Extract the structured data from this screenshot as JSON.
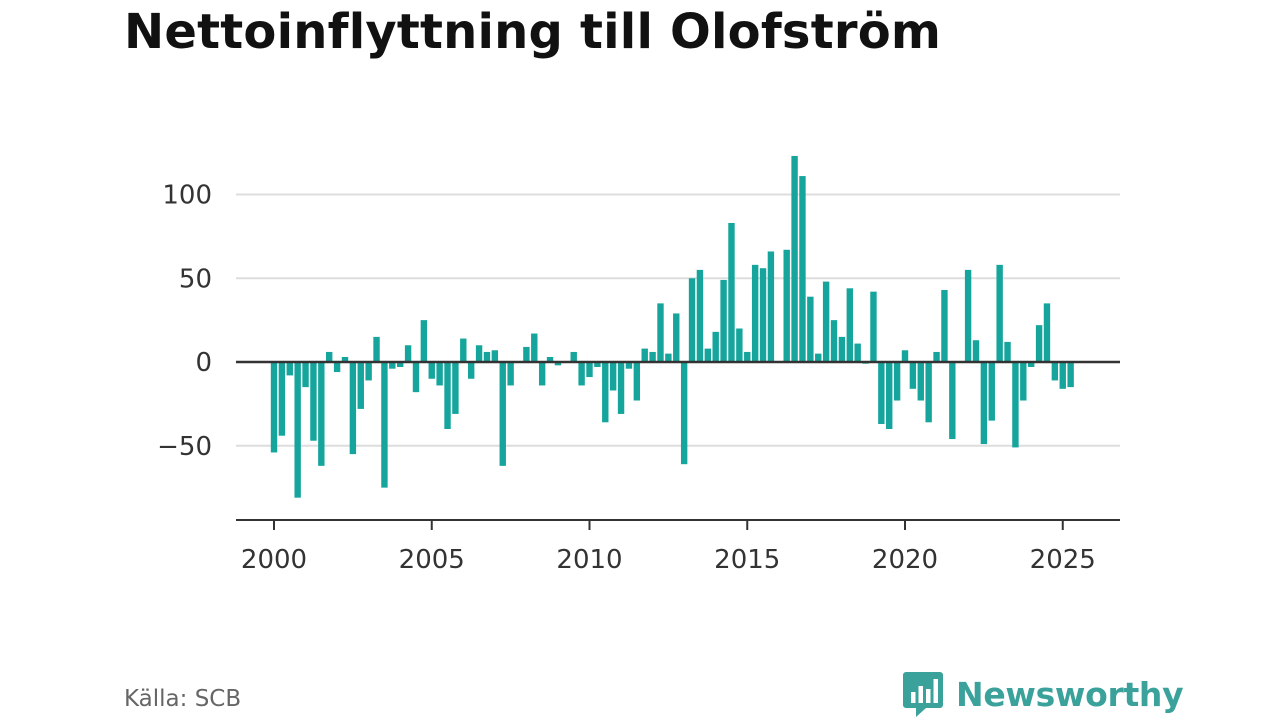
{
  "header": {
    "title": "Nettoinflyttning till Olofström"
  },
  "footer": {
    "source": "Källa: SCB",
    "brand": "Newsworthy"
  },
  "colors": {
    "bar": "#16a59c",
    "grid": "#dddddd",
    "axis": "#333333",
    "brand": "#3aa19b"
  },
  "icons": {
    "brand_logo": "newsworthy-logo-icon"
  },
  "chart_data": {
    "type": "bar",
    "title": "Nettoinflyttning till Olofström",
    "xlabel": "",
    "ylabel": "",
    "x_axis": "year",
    "xlim": [
      1999.25,
      2026.8
    ],
    "ylim": [
      -95,
      135
    ],
    "x_ticks": [
      2000,
      2005,
      2010,
      2015,
      2020,
      2025
    ],
    "x_tick_labels": [
      "2000",
      "2005",
      "2010",
      "2015",
      "2020",
      "2025"
    ],
    "y_ticks": [
      -50,
      0,
      50,
      100
    ],
    "y_tick_labels": [
      "−50",
      "0",
      "50",
      "100"
    ],
    "grid": true,
    "period": "quarter",
    "start": "2000 Q1",
    "values": [
      -54,
      -44,
      -8,
      -81,
      -15,
      -47,
      -62,
      6,
      -6,
      3,
      -55,
      -28,
      -11,
      15,
      -75,
      -4,
      -3,
      10,
      -18,
      25,
      -10,
      -14,
      -40,
      -31,
      14,
      -10,
      10,
      6,
      7,
      -62,
      -14,
      0,
      9,
      17,
      -14,
      3,
      -2,
      0,
      6,
      -14,
      -9,
      -3,
      -36,
      -17,
      -31,
      -4,
      -23,
      8,
      6,
      35,
      5,
      29,
      -61,
      50,
      55,
      8,
      18,
      49,
      83,
      20,
      6,
      58,
      56,
      66,
      0,
      67,
      123,
      111,
      39,
      5,
      48,
      25,
      15,
      44,
      11,
      -1,
      42,
      -37,
      -40,
      -23,
      7,
      -16,
      -23,
      -36,
      6,
      43,
      -46,
      0,
      55,
      13,
      -49,
      -35,
      58,
      12,
      -51,
      -23,
      -3,
      22,
      35,
      -11,
      -16,
      -15
    ]
  }
}
